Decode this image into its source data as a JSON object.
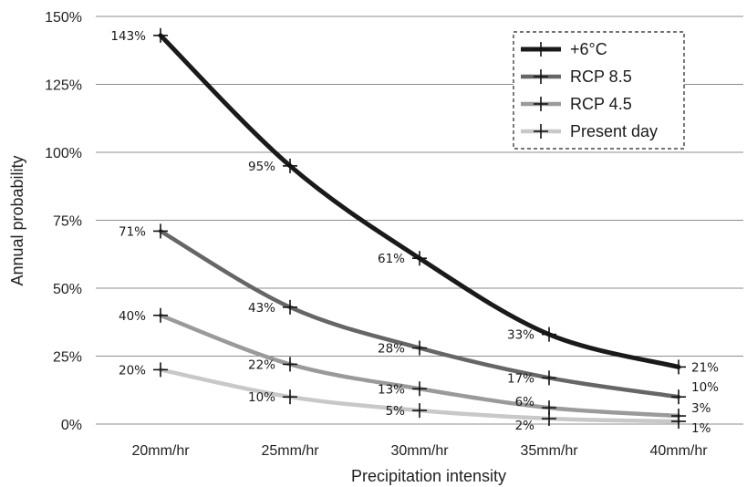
{
  "chart_data": {
    "type": "line",
    "xlabel": "Precipitation intensity",
    "ylabel": "Annual probability",
    "categories": [
      "20mm/hr",
      "25mm/hr",
      "30mm/hr",
      "35mm/hr",
      "40mm/hr"
    ],
    "ylim": [
      0,
      150
    ],
    "yticks": [
      "0%",
      "25%",
      "50%",
      "75%",
      "100%",
      "125%",
      "150%"
    ],
    "ytick_values": [
      0,
      25,
      50,
      75,
      100,
      125,
      150
    ],
    "grid": true,
    "legend_position": "top-right",
    "series": [
      {
        "name": "+6°C",
        "color": "#1a1a1a",
        "width": 5,
        "values": [
          143,
          95,
          61,
          33,
          21
        ],
        "labels": [
          "143%",
          "95%",
          "61%",
          "33%",
          "21%"
        ]
      },
      {
        "name": "RCP 8.5",
        "color": "#666666",
        "width": 4.5,
        "values": [
          71,
          43,
          28,
          17,
          10
        ],
        "labels": [
          "71%",
          "43%",
          "28%",
          "17%",
          "10%"
        ]
      },
      {
        "name": "RCP 4.5",
        "color": "#9a9a9a",
        "width": 4.5,
        "values": [
          40,
          22,
          13,
          6,
          3
        ],
        "labels": [
          "40%",
          "22%",
          "13%",
          "6%",
          "3%"
        ]
      },
      {
        "name": "Present day",
        "color": "#c8c8c8",
        "width": 4.5,
        "values": [
          20,
          10,
          5,
          2,
          1
        ],
        "labels": [
          "20%",
          "10%",
          "5%",
          "2%",
          "1%"
        ]
      }
    ]
  }
}
